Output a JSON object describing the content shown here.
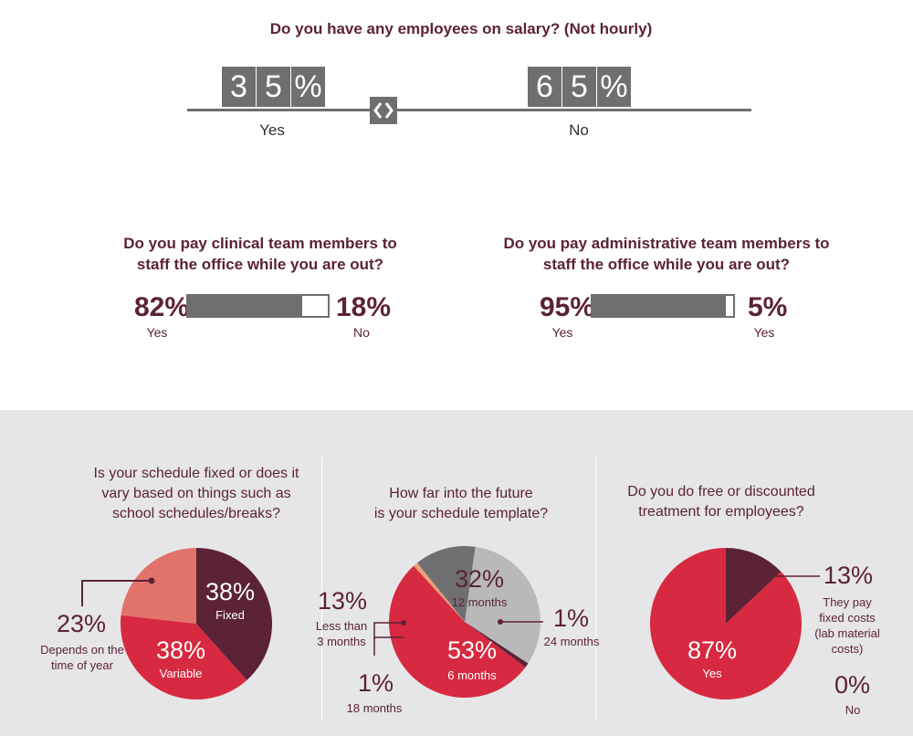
{
  "salary": {
    "question": "Do you have any employees on salary? (Not hourly)",
    "yes_digits": [
      "3",
      "5",
      "%"
    ],
    "no_digits": [
      "6",
      "5",
      "%"
    ],
    "yes_label": "Yes",
    "no_label": "No"
  },
  "clinical": {
    "question_line1": "Do you pay clinical team members to",
    "question_line2": "staff the office while you are out?",
    "left_pct": "82%",
    "left_label": "Yes",
    "right_pct": "18%",
    "right_label": "No",
    "fill_fraction": 0.82
  },
  "administrative": {
    "question_line1": "Do you pay administrative team members to",
    "question_line2": "staff the office while you are out?",
    "left_pct": "95%",
    "left_label": "Yes",
    "right_pct": "5%",
    "right_label": "Yes",
    "fill_fraction": 0.95
  },
  "schedule_fixed": {
    "question_line1": "Is your schedule fixed or does it",
    "question_line2": "vary based on things such as",
    "question_line3": "school schedules/breaks?",
    "fixed_pct": "38%",
    "fixed_label": "Fixed",
    "variable_pct": "38%",
    "variable_label": "Variable",
    "depends_pct": "23%",
    "depends_label_line1": "Depends on the",
    "depends_label_line2": "time of year"
  },
  "schedule_template": {
    "question_line1": "How far into the future",
    "question_line2": "is your schedule template?",
    "m12_pct": "32%",
    "m12_label": "12 months",
    "lt3_pct": "13%",
    "lt3_label_line1": "Less than",
    "lt3_label_line2": "3 months",
    "m24_pct": "1%",
    "m24_label": "24 months",
    "m6_pct": "53%",
    "m6_label": "6 months",
    "m18_pct": "1%",
    "m18_label": "18 months"
  },
  "employee_treatment": {
    "question_line1": "Do you do free or discounted",
    "question_line2": "treatment for employees?",
    "fixed_cost_pct": "13%",
    "fixed_cost_label_line1": "They pay",
    "fixed_cost_label_line2": "fixed costs",
    "fixed_cost_label_line3": "(lab material",
    "fixed_cost_label_line4": "costs)",
    "yes_pct": "87%",
    "yes_label": "Yes",
    "no_pct": "0%",
    "no_label": "No"
  },
  "chart_data": [
    {
      "type": "bar",
      "title": "Do you have any employees on salary? (Not hourly)",
      "categories": [
        "Yes",
        "No"
      ],
      "values": [
        35,
        65
      ]
    },
    {
      "type": "bar",
      "title": "Do you pay clinical team members to staff the office while you are out?",
      "categories": [
        "Yes",
        "No"
      ],
      "values": [
        82,
        18
      ]
    },
    {
      "type": "bar",
      "title": "Do you pay administrative team members to staff the office while you are out?",
      "categories": [
        "Yes",
        "Yes"
      ],
      "values": [
        95,
        5
      ]
    },
    {
      "type": "pie",
      "title": "Is your schedule fixed or does it vary based on things such as school schedules/breaks?",
      "categories": [
        "Fixed",
        "Variable",
        "Depends on the time of year"
      ],
      "values": [
        38,
        38,
        23
      ],
      "colors": [
        "#5c2236",
        "#d7293f",
        "#e2736b"
      ]
    },
    {
      "type": "pie",
      "title": "How far into the future is your schedule template?",
      "categories": [
        "12 months",
        "24 months",
        "6 months",
        "18 months",
        "Less than 3 months"
      ],
      "values": [
        32,
        1,
        53,
        1,
        13
      ],
      "colors": [
        "#b9b9bb",
        "#5c2236",
        "#d7293f",
        "#e8a07a",
        "#6f6f71"
      ]
    },
    {
      "type": "pie",
      "title": "Do you do free or discounted treatment for employees?",
      "categories": [
        "They pay fixed costs (lab material costs)",
        "Yes",
        "No"
      ],
      "values": [
        13,
        87,
        0
      ],
      "colors": [
        "#5c2236",
        "#d7293f",
        "#ffffff"
      ]
    }
  ]
}
